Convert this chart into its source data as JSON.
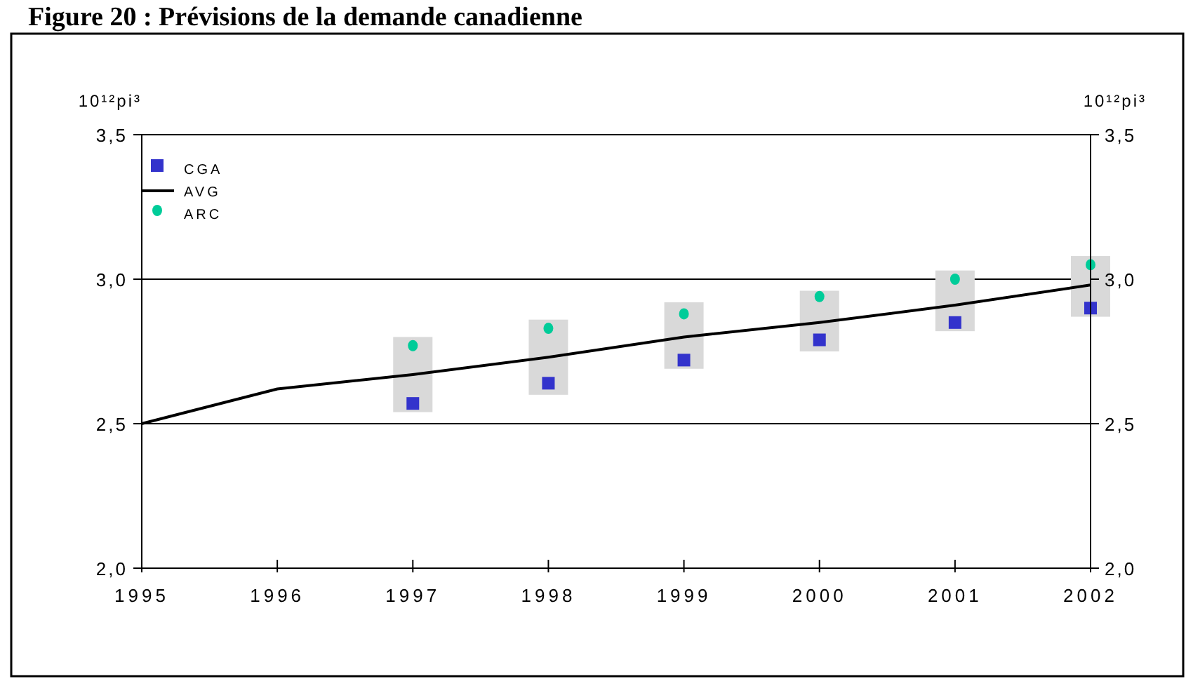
{
  "chart_data": {
    "type": "line",
    "title": "Figure 20 :  Prévisions de la demande canadienne",
    "ylabel": "10¹²pi³",
    "y2label": "10¹²pi³",
    "xlim": [
      1995,
      2002
    ],
    "xticks": [
      1995,
      1996,
      1997,
      1998,
      1999,
      2000,
      2001,
      2002
    ],
    "ylim": [
      2,
      3.5
    ],
    "yticks": [
      {
        "value": 2,
        "label": "2,0"
      },
      {
        "value": 2.5,
        "label": "2,5"
      },
      {
        "value": 3,
        "label": "3,0"
      },
      {
        "value": 3.5,
        "label": "3,5"
      }
    ],
    "y2lim": [
      2,
      3.5
    ],
    "y2ticks": [
      {
        "value": 2,
        "label": "2,0"
      },
      {
        "value": 2.5,
        "label": "2,5"
      },
      {
        "value": 3,
        "label": "3,0"
      },
      {
        "value": 3.5,
        "label": "3,5"
      }
    ],
    "grid": "y",
    "legend": "top left",
    "series": [
      {
        "type": "bar",
        "color": "#d9d9d9",
        "x": [
          1997,
          1998,
          1999,
          2000,
          2001,
          2002
        ],
        "base": [
          2.54,
          2.6,
          2.69,
          2.75,
          2.82,
          2.87
        ],
        "values": [
          0.26,
          0.26,
          0.23,
          0.21,
          0.21,
          0.21
        ]
      },
      {
        "name": "AVG",
        "color": "#000000",
        "marker": "none",
        "line_style": "solid",
        "x": [
          1995,
          1996,
          1997,
          1998,
          1999,
          2000,
          2001,
          2002
        ],
        "values": [
          2.5,
          2.62,
          2.67,
          2.73,
          2.8,
          2.85,
          2.91,
          2.98
        ]
      },
      {
        "type": "scatter",
        "name": "CGA",
        "color": "#3333cc",
        "marker": "square",
        "x": [
          1997,
          1998,
          1999,
          2000,
          2001,
          2002
        ],
        "values": [
          2.57,
          2.64,
          2.72,
          2.79,
          2.85,
          2.9
        ]
      },
      {
        "type": "scatter",
        "name": "ARC",
        "color": "#00cc99",
        "marker": "circle",
        "x": [
          1997,
          1998,
          1999,
          2000,
          2001,
          2002
        ],
        "values": [
          2.77,
          2.83,
          2.88,
          2.94,
          3.0,
          3.05
        ]
      }
    ]
  }
}
